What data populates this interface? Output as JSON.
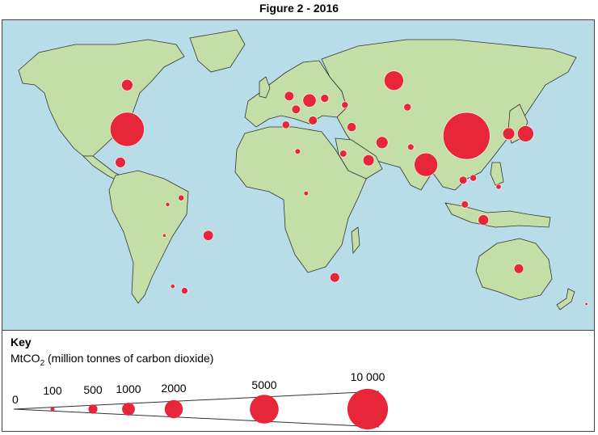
{
  "figure_title": "Figure 2 - 2016",
  "colors": {
    "ocean": "#b8dde9",
    "land": "#c4dea8",
    "border": "#333333",
    "circle": "#e8263a"
  },
  "emitters": [
    {
      "name": "canada-emitter",
      "value": 580,
      "lon": -98,
      "lat": 58
    },
    {
      "name": "usa-emitter",
      "value": 5300,
      "lon": -98,
      "lat": 38
    },
    {
      "name": "mexico-emitter",
      "value": 480,
      "lon": -102,
      "lat": 23
    },
    {
      "name": "venezuela-emitter",
      "value": 150,
      "lon": -66,
      "lat": 7
    },
    {
      "name": "colombia-emitter",
      "value": 80,
      "lon": -74,
      "lat": 4
    },
    {
      "name": "brazil-emitter",
      "value": 470,
      "lon": -50,
      "lat": -10
    },
    {
      "name": "argentina-emitter",
      "value": 190,
      "lon": -64,
      "lat": -35
    },
    {
      "name": "chile-emitter",
      "value": 80,
      "lon": -71,
      "lat": -33
    },
    {
      "name": "peru-emitter",
      "value": 50,
      "lon": -76,
      "lat": -10
    },
    {
      "name": "uk-emitter",
      "value": 400,
      "lon": -2,
      "lat": 53
    },
    {
      "name": "germany-emitter",
      "value": 800,
      "lon": 10,
      "lat": 51
    },
    {
      "name": "france-emitter",
      "value": 330,
      "lon": 2,
      "lat": 47
    },
    {
      "name": "spain-emitter",
      "value": 260,
      "lon": -4,
      "lat": 40
    },
    {
      "name": "italy-emitter",
      "value": 350,
      "lon": 12,
      "lat": 42
    },
    {
      "name": "poland-emitter",
      "value": 300,
      "lon": 19,
      "lat": 52
    },
    {
      "name": "ukraine-emitter",
      "value": 200,
      "lon": 31,
      "lat": 49
    },
    {
      "name": "turkey-emitter",
      "value": 370,
      "lon": 35,
      "lat": 39
    },
    {
      "name": "russia-emitter",
      "value": 1700,
      "lon": 60,
      "lat": 60
    },
    {
      "name": "kazakhstan-emitter",
      "value": 250,
      "lon": 68,
      "lat": 48
    },
    {
      "name": "iran-emitter",
      "value": 650,
      "lon": 53,
      "lat": 32
    },
    {
      "name": "saudi-arabia-emitter",
      "value": 560,
      "lon": 45,
      "lat": 24
    },
    {
      "name": "egypt-emitter",
      "value": 220,
      "lon": 30,
      "lat": 27
    },
    {
      "name": "algeria-emitter",
      "value": 140,
      "lon": 3,
      "lat": 28
    },
    {
      "name": "pakistan-emitter",
      "value": 180,
      "lon": 70,
      "lat": 30
    },
    {
      "name": "india-emitter",
      "value": 2500,
      "lon": 79,
      "lat": 22
    },
    {
      "name": "china-emitter",
      "value": 10000,
      "lon": 103,
      "lat": 35
    },
    {
      "name": "japan-emitter",
      "value": 1200,
      "lon": 138,
      "lat": 36
    },
    {
      "name": "south-korea-emitter",
      "value": 650,
      "lon": 128,
      "lat": 36
    },
    {
      "name": "thailand-emitter",
      "value": 280,
      "lon": 101,
      "lat": 15
    },
    {
      "name": "indonesia-emitter",
      "value": 500,
      "lon": 113,
      "lat": -3
    },
    {
      "name": "malaysia-emitter",
      "value": 230,
      "lon": 102,
      "lat": 4
    },
    {
      "name": "vietnam-emitter",
      "value": 200,
      "lon": 107,
      "lat": 16
    },
    {
      "name": "philippines-emitter",
      "value": 120,
      "lon": 122,
      "lat": 12
    },
    {
      "name": "australia-emitter",
      "value": 420,
      "lon": 134,
      "lat": -25
    },
    {
      "name": "south-africa-emitter",
      "value": 420,
      "lon": 25,
      "lat": -29
    },
    {
      "name": "nigeria-emitter",
      "value": 90,
      "lon": 8,
      "lat": 9
    },
    {
      "name": "new-zealand-emitter",
      "value": 35,
      "lon": 174,
      "lat": -41
    }
  ],
  "key": {
    "title": "Key",
    "unit_prefix": "MtCO",
    "unit_sub": "2",
    "unit_suffix": " (million tonnes of carbon dioxide)",
    "scale": [
      {
        "label": "0",
        "value": 0
      },
      {
        "label": "100",
        "value": 100
      },
      {
        "label": "500",
        "value": 500
      },
      {
        "label": "1000",
        "value": 1000
      },
      {
        "label": "2000",
        "value": 2000
      },
      {
        "label": "5000",
        "value": 5000
      },
      {
        "label": "10 000",
        "value": 10000
      }
    ]
  }
}
